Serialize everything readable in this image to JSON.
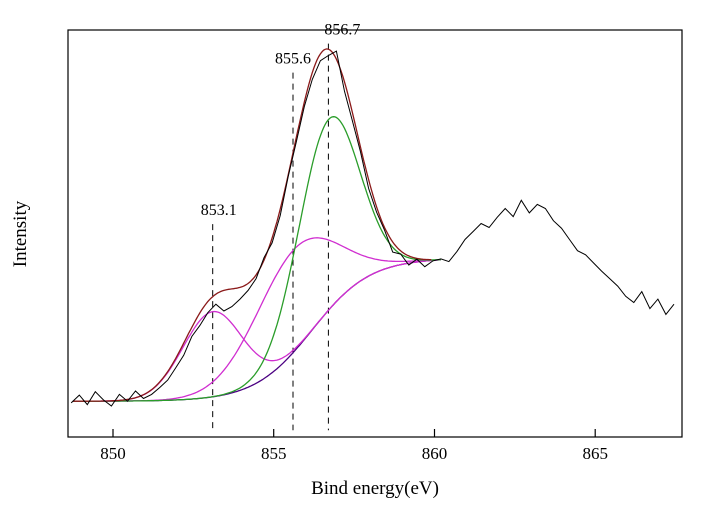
{
  "figure": {
    "background_color": "#ffffff",
    "frame_color": "#000000"
  },
  "chart_data": {
    "type": "line",
    "title": "",
    "xlabel": "Bind energy(eV)",
    "ylabel": "Intensity",
    "xlim": [
      848.6,
      867.7
    ],
    "ylim": [
      -0.075,
      1.12
    ],
    "x_ticks": [
      850,
      855,
      860,
      865
    ],
    "y_ticks": [],
    "grid": false,
    "legend": "none",
    "annotations": {
      "bottom_intensity": -0.055,
      "dashed_lines": [
        {
          "x": 853.1,
          "label": "853.1",
          "top_intensity": 0.55,
          "label_dx": 6
        },
        {
          "x": 855.6,
          "label": "855.6",
          "top_intensity": 0.995,
          "label_dx": 0
        },
        {
          "x": 856.7,
          "label": "856.7",
          "top_intensity": 1.08,
          "label_dx": 14
        }
      ]
    },
    "fit_model": {
      "note": "component curves are drawn as gaussian + background; envelope = background + sum of gaussians",
      "x_range": [
        848.75,
        860.2
      ],
      "envelope_x_range": [
        848.75,
        859.9
      ],
      "components_include_background": true,
      "background": {
        "shape": "sigmoid",
        "base": 0.03,
        "amplitude": 0.42,
        "center": 856.2,
        "width": 0.9,
        "color": "#4b0082"
      },
      "envelope_color": "#8b1a1a",
      "peaks": [
        {
          "name": "peak-853-1",
          "center": 853.1,
          "amplitude": 0.25,
          "fwhm": 2.2,
          "color": "#d02ed0"
        },
        {
          "name": "peak-855-6",
          "center": 855.6,
          "amplitude": 0.3,
          "fwhm": 3.0,
          "color": "#d02ed0"
        },
        {
          "name": "peak-856-7",
          "center": 856.7,
          "amplitude": 0.56,
          "fwhm": 2.2,
          "color": "#2a9d2a"
        }
      ]
    },
    "series": [
      {
        "name": "experimental",
        "color": "#000000",
        "points": [
          [
            848.7,
            0.025
          ],
          [
            848.95,
            0.048
          ],
          [
            849.2,
            0.02
          ],
          [
            849.45,
            0.058
          ],
          [
            849.7,
            0.034
          ],
          [
            849.95,
            0.016
          ],
          [
            850.2,
            0.05
          ],
          [
            850.45,
            0.03
          ],
          [
            850.7,
            0.06
          ],
          [
            850.95,
            0.038
          ],
          [
            851.2,
            0.05
          ],
          [
            851.45,
            0.07
          ],
          [
            851.7,
            0.092
          ],
          [
            851.95,
            0.128
          ],
          [
            852.2,
            0.165
          ],
          [
            852.45,
            0.22
          ],
          [
            852.7,
            0.252
          ],
          [
            852.95,
            0.29
          ],
          [
            853.2,
            0.315
          ],
          [
            853.45,
            0.295
          ],
          [
            853.7,
            0.308
          ],
          [
            853.95,
            0.33
          ],
          [
            854.2,
            0.355
          ],
          [
            854.45,
            0.39
          ],
          [
            854.7,
            0.452
          ],
          [
            854.95,
            0.495
          ],
          [
            855.2,
            0.575
          ],
          [
            855.45,
            0.69
          ],
          [
            855.7,
            0.79
          ],
          [
            855.95,
            0.895
          ],
          [
            856.2,
            0.975
          ],
          [
            856.45,
            1.03
          ],
          [
            856.7,
            1.045
          ],
          [
            856.95,
            1.058
          ],
          [
            857.2,
            0.94
          ],
          [
            857.45,
            0.852
          ],
          [
            857.7,
            0.762
          ],
          [
            857.95,
            0.655
          ],
          [
            858.2,
            0.585
          ],
          [
            858.45,
            0.532
          ],
          [
            858.7,
            0.468
          ],
          [
            858.95,
            0.462
          ],
          [
            859.2,
            0.43
          ],
          [
            859.45,
            0.447
          ],
          [
            859.7,
            0.425
          ],
          [
            859.95,
            0.442
          ],
          [
            860.2,
            0.448
          ],
          [
            860.45,
            0.44
          ],
          [
            860.7,
            0.47
          ],
          [
            860.95,
            0.505
          ],
          [
            861.2,
            0.528
          ],
          [
            861.45,
            0.552
          ],
          [
            861.7,
            0.54
          ],
          [
            861.95,
            0.57
          ],
          [
            862.2,
            0.596
          ],
          [
            862.45,
            0.572
          ],
          [
            862.7,
            0.62
          ],
          [
            862.95,
            0.583
          ],
          [
            863.2,
            0.608
          ],
          [
            863.45,
            0.596
          ],
          [
            863.7,
            0.56
          ],
          [
            863.95,
            0.538
          ],
          [
            864.2,
            0.505
          ],
          [
            864.45,
            0.472
          ],
          [
            864.7,
            0.46
          ],
          [
            864.95,
            0.436
          ],
          [
            865.2,
            0.412
          ],
          [
            865.45,
            0.39
          ],
          [
            865.7,
            0.368
          ],
          [
            865.95,
            0.338
          ],
          [
            866.2,
            0.32
          ],
          [
            866.45,
            0.352
          ],
          [
            866.7,
            0.302
          ],
          [
            866.95,
            0.33
          ],
          [
            867.2,
            0.285
          ],
          [
            867.45,
            0.315
          ]
        ]
      }
    ]
  }
}
